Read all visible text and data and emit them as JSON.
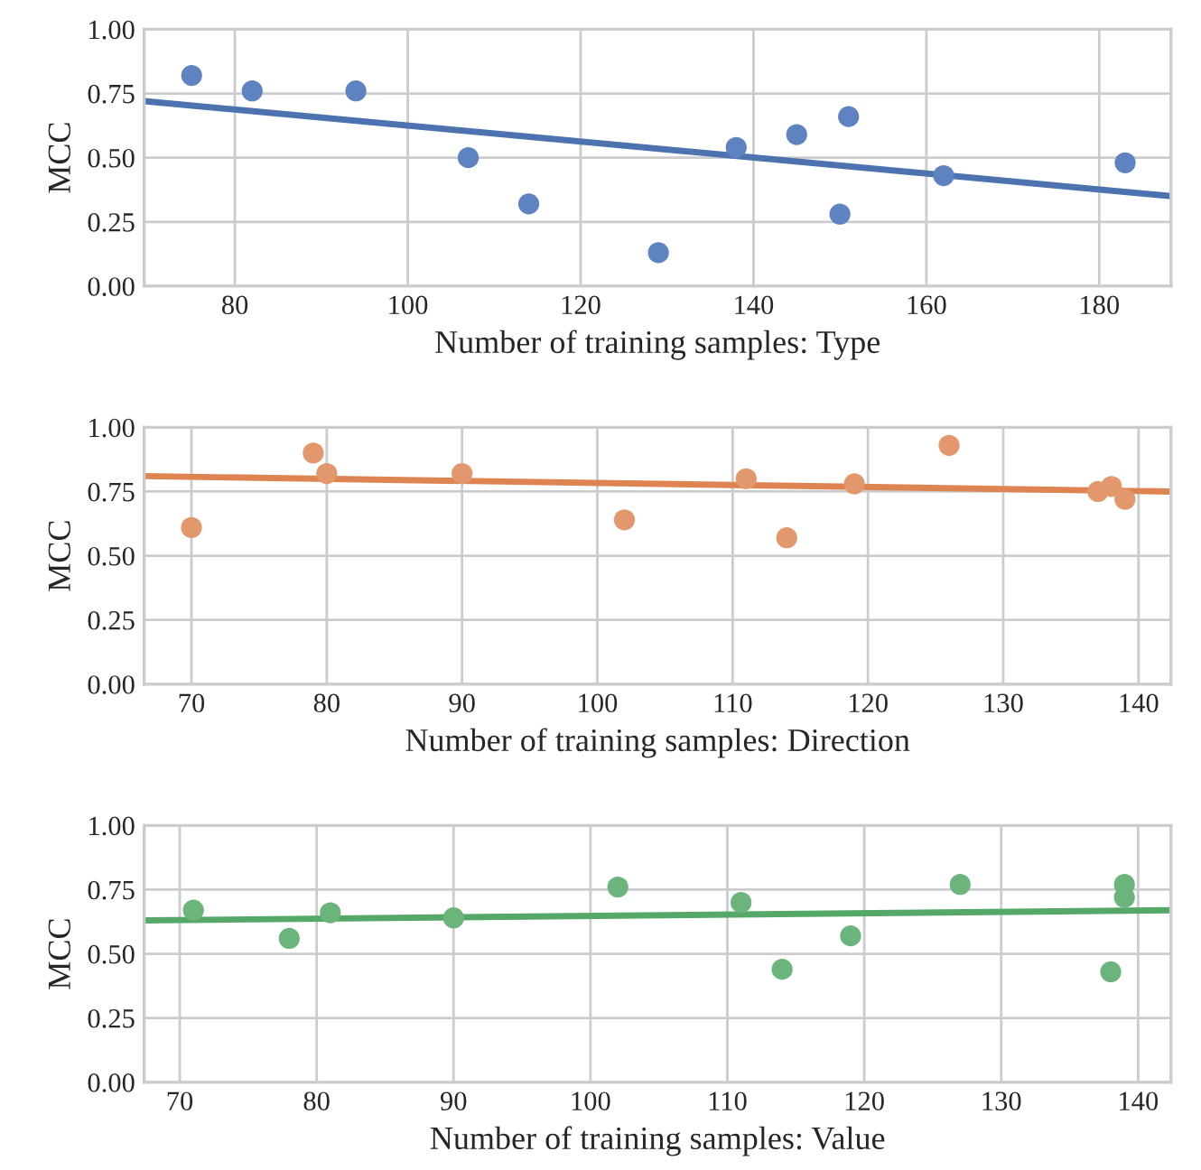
{
  "chart_data": [
    {
      "type": "scatter",
      "xlabel": "Number of training samples: Type",
      "ylabel": "MCC",
      "xlim": [
        69.5,
        188.3
      ],
      "ylim": [
        0,
        1
      ],
      "xticks": [
        80,
        100,
        120,
        140,
        160,
        180
      ],
      "yticks": [
        {
          "value": 0,
          "label": "0.00"
        },
        {
          "value": 0.25,
          "label": "0.25"
        },
        {
          "value": 0.5,
          "label": "0.50"
        },
        {
          "value": 0.75,
          "label": "0.75"
        },
        {
          "value": 1,
          "label": "1.00"
        }
      ],
      "grid": true,
      "series": [
        {
          "marker": "circle",
          "color": "#5f83c0",
          "x": [
            75,
            82,
            94,
            107,
            114,
            129,
            138,
            145,
            150,
            151,
            162,
            183
          ],
          "values": [
            0.82,
            0.76,
            0.76,
            0.5,
            0.32,
            0.13,
            0.54,
            0.59,
            0.28,
            0.66,
            0.43,
            0.48
          ]
        },
        {
          "type": "line",
          "color": "#4c72b0",
          "x": [
            69.5,
            188.3
          ],
          "values": [
            0.72,
            0.35
          ]
        }
      ]
    },
    {
      "type": "scatter",
      "xlabel": "Number of training samples: Direction",
      "ylabel": "MCC",
      "xlim": [
        66.5,
        142.4
      ],
      "ylim": [
        0,
        1
      ],
      "xticks": [
        70,
        80,
        90,
        100,
        110,
        120,
        130,
        140
      ],
      "yticks": [
        {
          "value": 0,
          "label": "0.00"
        },
        {
          "value": 0.25,
          "label": "0.25"
        },
        {
          "value": 0.5,
          "label": "0.50"
        },
        {
          "value": 0.75,
          "label": "0.75"
        },
        {
          "value": 1,
          "label": "1.00"
        }
      ],
      "grid": true,
      "series": [
        {
          "marker": "circle",
          "color": "#e2976c",
          "x": [
            70,
            79,
            80,
            90,
            102,
            111,
            114,
            119,
            126,
            137,
            138,
            139
          ],
          "values": [
            0.61,
            0.9,
            0.82,
            0.82,
            0.64,
            0.8,
            0.57,
            0.78,
            0.93,
            0.75,
            0.77,
            0.72
          ]
        },
        {
          "type": "line",
          "color": "#dd8452",
          "x": [
            66.5,
            142.4
          ],
          "values": [
            0.81,
            0.75
          ]
        }
      ]
    },
    {
      "type": "scatter",
      "xlabel": "Number of training samples: Value",
      "ylabel": "MCC",
      "xlim": [
        67.4,
        142.4
      ],
      "ylim": [
        0,
        1
      ],
      "xticks": [
        70,
        80,
        90,
        100,
        110,
        120,
        130,
        140
      ],
      "yticks": [
        {
          "value": 0,
          "label": "0.00"
        },
        {
          "value": 0.25,
          "label": "0.25"
        },
        {
          "value": 0.5,
          "label": "0.50"
        },
        {
          "value": 0.75,
          "label": "0.75"
        },
        {
          "value": 1,
          "label": "1.00"
        }
      ],
      "grid": true,
      "series": [
        {
          "marker": "circle",
          "color": "#6bb47c",
          "x": [
            71,
            78,
            81,
            90,
            102,
            111,
            114,
            119,
            127,
            138,
            139,
            139
          ],
          "values": [
            0.67,
            0.56,
            0.66,
            0.64,
            0.76,
            0.7,
            0.44,
            0.57,
            0.77,
            0.43,
            0.77,
            0.72
          ]
        },
        {
          "type": "line",
          "color": "#55a868",
          "x": [
            67.4,
            142.4
          ],
          "values": [
            0.63,
            0.67
          ]
        }
      ]
    }
  ]
}
